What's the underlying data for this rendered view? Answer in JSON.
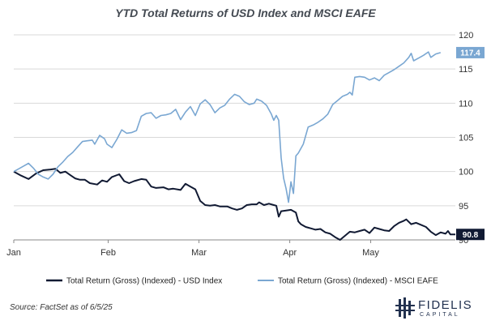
{
  "chart_data": {
    "type": "line",
    "title": "YTD Total Returns of USD Index and MSCI EAFE",
    "xlabel": "",
    "ylabel": "",
    "x_tick_labels": [
      "Jan",
      "Feb",
      "Mar",
      "Apr",
      "May"
    ],
    "y_ticks": [
      90,
      95,
      100,
      105,
      110,
      115,
      120
    ],
    "ylim": [
      90,
      120
    ],
    "y_axis_side": "right",
    "grid": "horizontal",
    "legend_placement": "bottom",
    "series": [
      {
        "name": "Total Return (Gross) (Indexed) - USD Index",
        "color": "#111a33",
        "end_label": "90.8",
        "points": [
          [
            0,
            100.0
          ],
          [
            3,
            99.4
          ],
          [
            6,
            98.9
          ],
          [
            9,
            99.7
          ],
          [
            12,
            100.2
          ],
          [
            15,
            100.3
          ],
          [
            17,
            100.4
          ],
          [
            19,
            99.8
          ],
          [
            21,
            100.0
          ],
          [
            23,
            99.5
          ],
          [
            25,
            99.0
          ],
          [
            27,
            98.8
          ],
          [
            29,
            98.8
          ],
          [
            31,
            98.3
          ],
          [
            34,
            98.1
          ],
          [
            36,
            98.7
          ],
          [
            38,
            98.5
          ],
          [
            40,
            99.2
          ],
          [
            43,
            99.6
          ],
          [
            45,
            98.6
          ],
          [
            47,
            98.3
          ],
          [
            49,
            98.6
          ],
          [
            52,
            98.9
          ],
          [
            54,
            98.8
          ],
          [
            56,
            97.8
          ],
          [
            58,
            97.6
          ],
          [
            61,
            97.7
          ],
          [
            63,
            97.4
          ],
          [
            65,
            97.5
          ],
          [
            68,
            97.3
          ],
          [
            70,
            98.2
          ],
          [
            72,
            97.8
          ],
          [
            74,
            97.4
          ],
          [
            76,
            95.7
          ],
          [
            78,
            95.1
          ],
          [
            80,
            95.0
          ],
          [
            82,
            95.1
          ],
          [
            84,
            94.9
          ],
          [
            87,
            94.9
          ],
          [
            89,
            94.6
          ],
          [
            91,
            94.4
          ],
          [
            93,
            94.6
          ],
          [
            95,
            95.1
          ],
          [
            97,
            95.2
          ],
          [
            99,
            95.2
          ],
          [
            100,
            95.5
          ],
          [
            102,
            95.1
          ],
          [
            104,
            95.3
          ],
          [
            106,
            95.1
          ],
          [
            107,
            95.0
          ],
          [
            108,
            93.4
          ],
          [
            109,
            94.2
          ],
          [
            111,
            94.3
          ],
          [
            113,
            94.4
          ],
          [
            115,
            94.0
          ],
          [
            116,
            92.7
          ],
          [
            117,
            92.3
          ],
          [
            119,
            91.9
          ],
          [
            121,
            91.7
          ],
          [
            123,
            91.5
          ],
          [
            125,
            91.6
          ],
          [
            127,
            91.1
          ],
          [
            129,
            90.9
          ],
          [
            131,
            90.4
          ],
          [
            133,
            90.0
          ],
          [
            135,
            90.6
          ],
          [
            137,
            91.2
          ],
          [
            139,
            91.1
          ],
          [
            141,
            91.3
          ],
          [
            143,
            91.5
          ],
          [
            145,
            91.0
          ],
          [
            147,
            91.8
          ],
          [
            149,
            91.6
          ],
          [
            151,
            91.4
          ],
          [
            153,
            91.3
          ],
          [
            155,
            92.0
          ],
          [
            157,
            92.5
          ],
          [
            159,
            92.8
          ],
          [
            160,
            93.0
          ],
          [
            162,
            92.3
          ],
          [
            164,
            92.5
          ],
          [
            166,
            92.2
          ],
          [
            168,
            91.9
          ],
          [
            170,
            91.2
          ],
          [
            172,
            90.7
          ],
          [
            174,
            91.1
          ],
          [
            176,
            90.9
          ],
          [
            177,
            91.3
          ],
          [
            178,
            90.8
          ],
          [
            180,
            90.8
          ]
        ]
      },
      {
        "name": "Total Return (Gross) (Indexed) - MSCI EAFE",
        "color": "#7aa7d2",
        "end_label": "117.4",
        "points": [
          [
            0,
            100.0
          ],
          [
            2,
            100.4
          ],
          [
            4,
            100.8
          ],
          [
            6,
            101.2
          ],
          [
            8,
            100.5
          ],
          [
            10,
            99.6
          ],
          [
            12,
            99.2
          ],
          [
            14,
            98.9
          ],
          [
            16,
            99.6
          ],
          [
            18,
            100.7
          ],
          [
            20,
            101.4
          ],
          [
            22,
            102.2
          ],
          [
            24,
            102.8
          ],
          [
            26,
            103.6
          ],
          [
            28,
            104.4
          ],
          [
            30,
            104.5
          ],
          [
            32,
            104.6
          ],
          [
            33,
            104.0
          ],
          [
            35,
            105.3
          ],
          [
            37,
            104.8
          ],
          [
            38,
            104.0
          ],
          [
            40,
            103.5
          ],
          [
            42,
            104.7
          ],
          [
            44,
            106.1
          ],
          [
            46,
            105.6
          ],
          [
            48,
            105.7
          ],
          [
            50,
            106.0
          ],
          [
            52,
            108.1
          ],
          [
            54,
            108.5
          ],
          [
            56,
            108.6
          ],
          [
            58,
            107.8
          ],
          [
            60,
            108.2
          ],
          [
            62,
            108.3
          ],
          [
            64,
            108.5
          ],
          [
            66,
            109.1
          ],
          [
            68,
            107.6
          ],
          [
            70,
            108.7
          ],
          [
            72,
            109.5
          ],
          [
            74,
            108.2
          ],
          [
            76,
            109.9
          ],
          [
            78,
            110.5
          ],
          [
            80,
            109.8
          ],
          [
            82,
            108.6
          ],
          [
            84,
            109.3
          ],
          [
            86,
            109.7
          ],
          [
            88,
            110.6
          ],
          [
            90,
            111.3
          ],
          [
            92,
            111.0
          ],
          [
            94,
            110.2
          ],
          [
            96,
            109.8
          ],
          [
            98,
            110.0
          ],
          [
            99,
            110.6
          ],
          [
            101,
            110.3
          ],
          [
            103,
            109.7
          ],
          [
            105,
            108.4
          ],
          [
            106,
            107.5
          ],
          [
            107,
            108.2
          ],
          [
            108,
            107.5
          ],
          [
            109,
            102.0
          ],
          [
            110,
            99.0
          ],
          [
            111,
            97.5
          ],
          [
            112,
            95.5
          ],
          [
            113,
            98.5
          ],
          [
            114,
            96.8
          ],
          [
            115,
            102.3
          ],
          [
            116,
            102.7
          ],
          [
            118,
            104.0
          ],
          [
            120,
            106.5
          ],
          [
            122,
            106.8
          ],
          [
            124,
            107.2
          ],
          [
            126,
            107.7
          ],
          [
            128,
            108.4
          ],
          [
            130,
            109.8
          ],
          [
            132,
            110.4
          ],
          [
            134,
            111.0
          ],
          [
            136,
            111.3
          ],
          [
            137,
            111.6
          ],
          [
            138,
            111.2
          ],
          [
            139,
            113.8
          ],
          [
            141,
            113.9
          ],
          [
            143,
            113.8
          ],
          [
            145,
            113.4
          ],
          [
            147,
            113.7
          ],
          [
            149,
            113.3
          ],
          [
            151,
            114.1
          ],
          [
            153,
            114.5
          ],
          [
            155,
            114.9
          ],
          [
            157,
            115.4
          ],
          [
            159,
            115.9
          ],
          [
            161,
            116.7
          ],
          [
            162,
            117.3
          ],
          [
            163,
            116.2
          ],
          [
            165,
            116.6
          ],
          [
            167,
            117.0
          ],
          [
            169,
            117.5
          ],
          [
            170,
            116.7
          ],
          [
            172,
            117.2
          ],
          [
            174,
            117.4
          ]
        ]
      }
    ]
  },
  "footer": {
    "source": "Source: FactSet as of 6/5/25",
    "brand_name": "FIDELIS",
    "brand_sub": "CAPITAL"
  }
}
